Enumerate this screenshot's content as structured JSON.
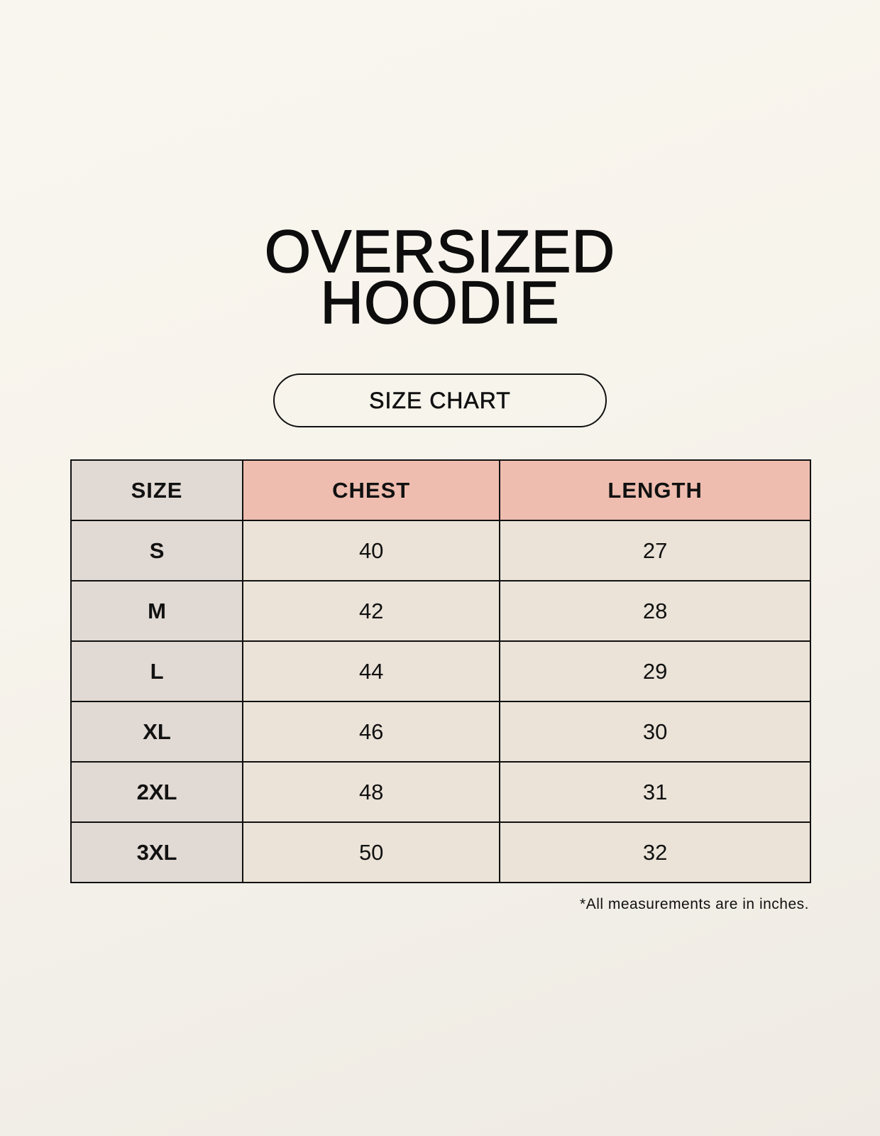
{
  "title_line1": "OVERSIZED",
  "title_line2": "HOODIE",
  "subtitle": "SIZE CHART",
  "colors": {
    "size_column": "#e1d9d3",
    "measure_header": "#eebdaf",
    "value_cells": "#ebe3d8"
  },
  "table": {
    "headers": [
      "SIZE",
      "CHEST",
      "LENGTH"
    ],
    "rows": [
      [
        "S",
        "40",
        "27"
      ],
      [
        "M",
        "42",
        "28"
      ],
      [
        "L",
        "44",
        "29"
      ],
      [
        "XL",
        "46",
        "30"
      ],
      [
        "2XL",
        "48",
        "31"
      ],
      [
        "3XL",
        "50",
        "32"
      ]
    ]
  },
  "footnote": "*All measurements are in inches."
}
